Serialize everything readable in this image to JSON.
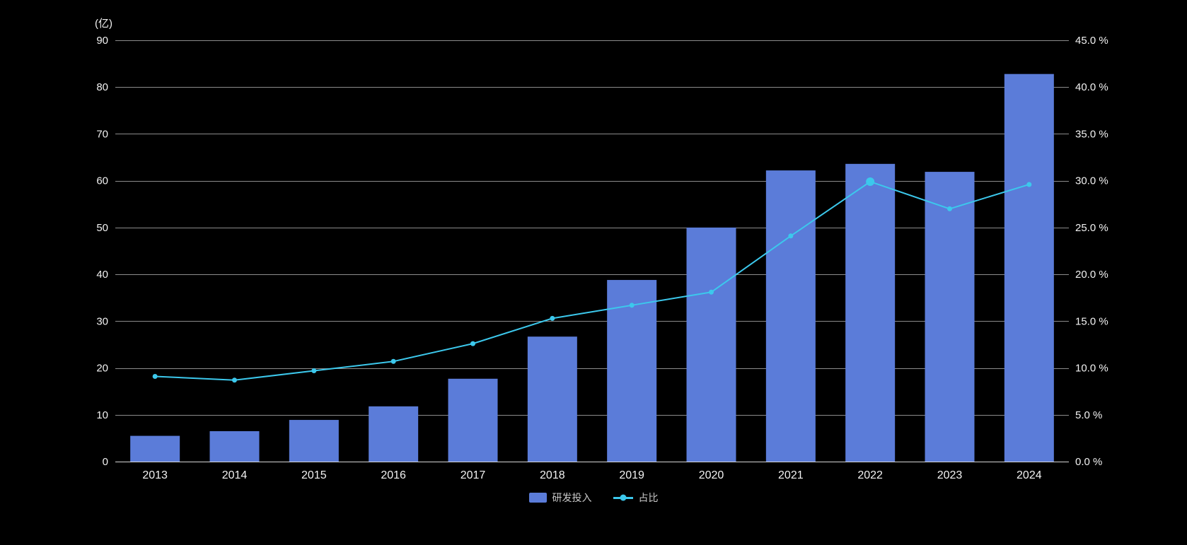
{
  "chart_data": {
    "type": "bar+line",
    "title": "",
    "unit_label": "(亿)",
    "categories": [
      "2013",
      "2014",
      "2015",
      "2016",
      "2017",
      "2018",
      "2019",
      "2020",
      "2021",
      "2022",
      "2023",
      "2024"
    ],
    "series": [
      {
        "name": "研发投入",
        "type": "bar",
        "axis": "left",
        "color": "#5b7cd9",
        "values": [
          5.5,
          6.5,
          8.9,
          11.8,
          17.7,
          26.7,
          38.8,
          50.0,
          62.2,
          63.6,
          61.9,
          82.8
        ]
      },
      {
        "name": "占比",
        "type": "line",
        "axis": "right",
        "color": "#3cc8ec",
        "values": [
          9.1,
          8.7,
          9.7,
          10.7,
          12.6,
          15.3,
          16.7,
          18.1,
          24.1,
          29.9,
          27.0,
          29.6
        ]
      }
    ],
    "left_axis": {
      "min": 0,
      "max": 90,
      "step": 10
    },
    "right_axis": {
      "min": 0,
      "max": 45,
      "step": 5,
      "decimals": 1,
      "suffix": " %"
    },
    "highlight_index": 9,
    "grid": true,
    "legend_position": "bottom",
    "background": "#000000",
    "text_color": "#f2f2f2",
    "grid_color": "#8c8c8c",
    "axis_line_color": "#d6d6d6"
  }
}
